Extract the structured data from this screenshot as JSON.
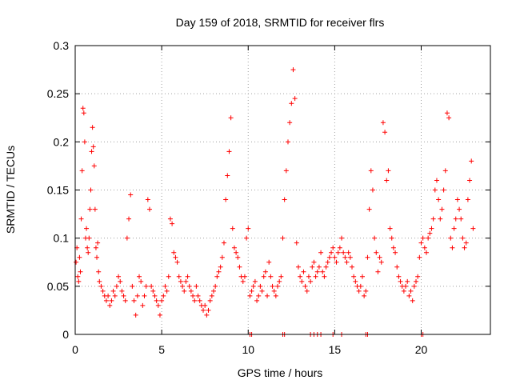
{
  "chart_data": {
    "type": "scatter",
    "title": "Day 159 of 2018, SRMTID for receiver flrs",
    "xlabel": "GPS time / hours",
    "ylabel": "SRMTID / TECUs",
    "xlim": [
      0,
      24
    ],
    "ylim": [
      0,
      0.3
    ],
    "xticks": [
      0,
      5,
      10,
      15,
      20
    ],
    "xtick_labels": [
      "0",
      "5",
      "10",
      "15",
      "20"
    ],
    "yticks": [
      0,
      0.05,
      0.1,
      0.15,
      0.2,
      0.25,
      0.3
    ],
    "ytick_labels": [
      "0",
      "0.05",
      "0.1",
      "0.15",
      "0.2",
      "0.25",
      "0.3"
    ],
    "grid": true,
    "marker": "plus",
    "series": [
      {
        "name": "SRMTID",
        "color": "#ff0000",
        "points": [
          [
            0.05,
            0.075
          ],
          [
            0.1,
            0.09
          ],
          [
            0.15,
            0.06
          ],
          [
            0.2,
            0.055
          ],
          [
            0.25,
            0.08
          ],
          [
            0.3,
            0.065
          ],
          [
            0.35,
            0.12
          ],
          [
            0.4,
            0.17
          ],
          [
            0.45,
            0.235
          ],
          [
            0.5,
            0.23
          ],
          [
            0.55,
            0.2
          ],
          [
            0.6,
            0.1
          ],
          [
            0.65,
            0.11
          ],
          [
            0.7,
            0.09
          ],
          [
            0.75,
            0.085
          ],
          [
            0.8,
            0.1
          ],
          [
            0.85,
            0.13
          ],
          [
            0.9,
            0.15
          ],
          [
            0.95,
            0.19
          ],
          [
            1.0,
            0.215
          ],
          [
            1.05,
            0.195
          ],
          [
            1.1,
            0.175
          ],
          [
            1.15,
            0.13
          ],
          [
            1.2,
            0.09
          ],
          [
            1.25,
            0.08
          ],
          [
            1.3,
            0.095
          ],
          [
            1.35,
            0.065
          ],
          [
            1.4,
            0.055
          ],
          [
            1.5,
            0.05
          ],
          [
            1.6,
            0.045
          ],
          [
            1.7,
            0.04
          ],
          [
            1.8,
            0.035
          ],
          [
            1.9,
            0.04
          ],
          [
            2.0,
            0.03
          ],
          [
            2.1,
            0.035
          ],
          [
            2.2,
            0.045
          ],
          [
            2.3,
            0.04
          ],
          [
            2.4,
            0.05
          ],
          [
            2.5,
            0.06
          ],
          [
            2.6,
            0.055
          ],
          [
            2.7,
            0.045
          ],
          [
            2.8,
            0.04
          ],
          [
            2.9,
            0.035
          ],
          [
            3.0,
            0.1
          ],
          [
            3.1,
            0.12
          ],
          [
            3.2,
            0.145
          ],
          [
            3.3,
            0.05
          ],
          [
            3.4,
            0.035
          ],
          [
            3.5,
            0.02
          ],
          [
            3.6,
            0.04
          ],
          [
            3.7,
            0.06
          ],
          [
            3.8,
            0.055
          ],
          [
            3.9,
            0.03
          ],
          [
            4.0,
            0.04
          ],
          [
            4.1,
            0.05
          ],
          [
            4.2,
            0.14
          ],
          [
            4.3,
            0.13
          ],
          [
            4.4,
            0.05
          ],
          [
            4.5,
            0.045
          ],
          [
            4.6,
            0.04
          ],
          [
            4.7,
            0.035
          ],
          [
            4.8,
            0.03
          ],
          [
            4.9,
            0.02
          ],
          [
            5.0,
            0.035
          ],
          [
            5.1,
            0.04
          ],
          [
            5.2,
            0.05
          ],
          [
            5.3,
            0.045
          ],
          [
            5.4,
            0.06
          ],
          [
            5.5,
            0.12
          ],
          [
            5.6,
            0.115
          ],
          [
            5.7,
            0.085
          ],
          [
            5.8,
            0.08
          ],
          [
            5.9,
            0.075
          ],
          [
            6.0,
            0.06
          ],
          [
            6.1,
            0.055
          ],
          [
            6.2,
            0.05
          ],
          [
            6.3,
            0.045
          ],
          [
            6.4,
            0.055
          ],
          [
            6.5,
            0.06
          ],
          [
            6.6,
            0.05
          ],
          [
            6.7,
            0.045
          ],
          [
            6.8,
            0.04
          ],
          [
            6.9,
            0.035
          ],
          [
            7.0,
            0.05
          ],
          [
            7.1,
            0.04
          ],
          [
            7.2,
            0.035
          ],
          [
            7.3,
            0.03
          ],
          [
            7.4,
            0.025
          ],
          [
            7.5,
            0.03
          ],
          [
            7.6,
            0.02
          ],
          [
            7.7,
            0.025
          ],
          [
            7.8,
            0.035
          ],
          [
            7.9,
            0.04
          ],
          [
            8.0,
            0.045
          ],
          [
            8.1,
            0.05
          ],
          [
            8.2,
            0.06
          ],
          [
            8.3,
            0.065
          ],
          [
            8.4,
            0.07
          ],
          [
            8.5,
            0.08
          ],
          [
            8.6,
            0.095
          ],
          [
            8.7,
            0.14
          ],
          [
            8.8,
            0.165
          ],
          [
            8.9,
            0.19
          ],
          [
            9.0,
            0.225
          ],
          [
            9.1,
            0.11
          ],
          [
            9.2,
            0.09
          ],
          [
            9.3,
            0.085
          ],
          [
            9.4,
            0.08
          ],
          [
            9.5,
            0.07
          ],
          [
            9.6,
            0.06
          ],
          [
            9.7,
            0.055
          ],
          [
            9.8,
            0.06
          ],
          [
            9.9,
            0.1
          ],
          [
            10.0,
            0.11
          ],
          [
            10.1,
            0.04
          ],
          [
            10.2,
            0.045
          ],
          [
            10.3,
            0.05
          ],
          [
            10.4,
            0.055
          ],
          [
            10.5,
            0.035
          ],
          [
            10.6,
            0.04
          ],
          [
            10.7,
            0.05
          ],
          [
            10.8,
            0.045
          ],
          [
            10.9,
            0.06
          ],
          [
            11.0,
            0.065
          ],
          [
            11.1,
            0.04
          ],
          [
            11.2,
            0.075
          ],
          [
            11.3,
            0.06
          ],
          [
            11.4,
            0.05
          ],
          [
            11.5,
            0.045
          ],
          [
            11.6,
            0.04
          ],
          [
            11.7,
            0.05
          ],
          [
            11.8,
            0.055
          ],
          [
            11.9,
            0.06
          ],
          [
            12.0,
            0.1
          ],
          [
            12.1,
            0.14
          ],
          [
            12.2,
            0.17
          ],
          [
            12.3,
            0.2
          ],
          [
            12.4,
            0.22
          ],
          [
            12.5,
            0.24
          ],
          [
            12.6,
            0.275
          ],
          [
            12.7,
            0.245
          ],
          [
            12.8,
            0.095
          ],
          [
            12.9,
            0.07
          ],
          [
            13.0,
            0.06
          ],
          [
            13.1,
            0.055
          ],
          [
            13.2,
            0.065
          ],
          [
            13.3,
            0.05
          ],
          [
            13.4,
            0.045
          ],
          [
            13.5,
            0.06
          ],
          [
            13.6,
            0.055
          ],
          [
            13.7,
            0.07
          ],
          [
            13.8,
            0.075
          ],
          [
            13.9,
            0.06
          ],
          [
            14.0,
            0.065
          ],
          [
            14.1,
            0.07
          ],
          [
            14.2,
            0.085
          ],
          [
            14.3,
            0.065
          ],
          [
            14.4,
            0.06
          ],
          [
            14.5,
            0.07
          ],
          [
            14.6,
            0.075
          ],
          [
            14.7,
            0.08
          ],
          [
            14.8,
            0.085
          ],
          [
            14.9,
            0.09
          ],
          [
            15.0,
            0.08
          ],
          [
            15.1,
            0.075
          ],
          [
            15.2,
            0.085
          ],
          [
            15.3,
            0.09
          ],
          [
            15.4,
            0.1
          ],
          [
            15.5,
            0.085
          ],
          [
            15.6,
            0.08
          ],
          [
            15.7,
            0.075
          ],
          [
            15.8,
            0.085
          ],
          [
            15.9,
            0.08
          ],
          [
            16.0,
            0.07
          ],
          [
            16.1,
            0.06
          ],
          [
            16.2,
            0.055
          ],
          [
            16.3,
            0.05
          ],
          [
            16.4,
            0.045
          ],
          [
            16.5,
            0.05
          ],
          [
            16.6,
            0.06
          ],
          [
            16.7,
            0.04
          ],
          [
            16.8,
            0.045
          ],
          [
            16.9,
            0.08
          ],
          [
            17.0,
            0.13
          ],
          [
            17.1,
            0.17
          ],
          [
            17.2,
            0.15
          ],
          [
            17.3,
            0.1
          ],
          [
            17.4,
            0.085
          ],
          [
            17.5,
            0.065
          ],
          [
            17.6,
            0.08
          ],
          [
            17.7,
            0.075
          ],
          [
            17.8,
            0.22
          ],
          [
            17.9,
            0.21
          ],
          [
            18.0,
            0.16
          ],
          [
            18.1,
            0.17
          ],
          [
            18.2,
            0.11
          ],
          [
            18.3,
            0.1
          ],
          [
            18.4,
            0.09
          ],
          [
            18.5,
            0.085
          ],
          [
            18.6,
            0.07
          ],
          [
            18.7,
            0.06
          ],
          [
            18.8,
            0.055
          ],
          [
            18.9,
            0.05
          ],
          [
            19.0,
            0.045
          ],
          [
            19.1,
            0.05
          ],
          [
            19.2,
            0.055
          ],
          [
            19.3,
            0.04
          ],
          [
            19.4,
            0.045
          ],
          [
            19.5,
            0.035
          ],
          [
            19.6,
            0.05
          ],
          [
            19.7,
            0.055
          ],
          [
            19.8,
            0.06
          ],
          [
            19.9,
            0.08
          ],
          [
            20.0,
            0.095
          ],
          [
            20.1,
            0.1
          ],
          [
            20.2,
            0.09
          ],
          [
            20.3,
            0.085
          ],
          [
            20.4,
            0.1
          ],
          [
            20.5,
            0.105
          ],
          [
            20.6,
            0.11
          ],
          [
            20.7,
            0.12
          ],
          [
            20.8,
            0.15
          ],
          [
            20.9,
            0.16
          ],
          [
            21.0,
            0.14
          ],
          [
            21.1,
            0.12
          ],
          [
            21.2,
            0.13
          ],
          [
            21.3,
            0.15
          ],
          [
            21.4,
            0.17
          ],
          [
            21.5,
            0.23
          ],
          [
            21.6,
            0.225
          ],
          [
            21.7,
            0.1
          ],
          [
            21.8,
            0.09
          ],
          [
            21.9,
            0.11
          ],
          [
            22.0,
            0.12
          ],
          [
            22.1,
            0.14
          ],
          [
            22.2,
            0.13
          ],
          [
            22.3,
            0.12
          ],
          [
            22.4,
            0.1
          ],
          [
            22.5,
            0.09
          ],
          [
            22.6,
            0.095
          ],
          [
            22.7,
            0.14
          ],
          [
            22.8,
            0.16
          ],
          [
            22.9,
            0.18
          ],
          [
            23.0,
            0.11
          ]
        ],
        "zero_points": [
          10.1,
          10.2,
          12.0,
          12.1,
          13.6,
          13.8,
          14.0,
          14.2,
          14.9,
          15.4,
          16.8,
          16.9,
          20.0,
          20.1
        ]
      }
    ]
  }
}
